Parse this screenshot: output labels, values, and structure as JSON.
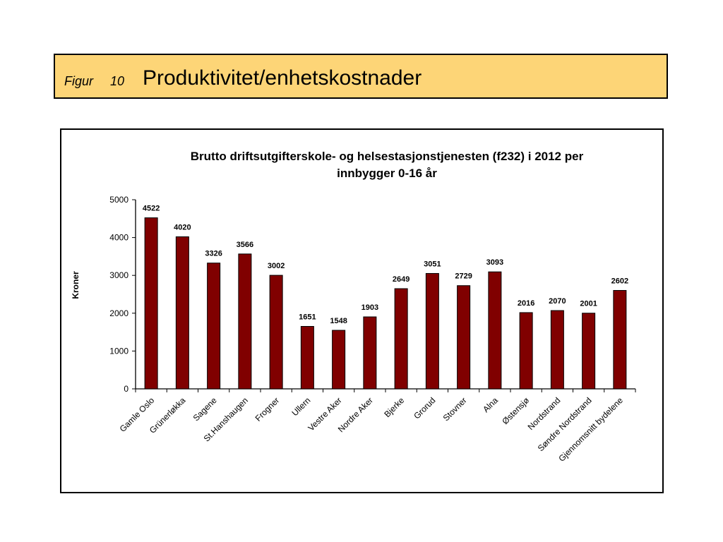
{
  "header": {
    "figur_label": "Figur",
    "figur_number": "10",
    "title": "Produktivitet/enhetskostnader"
  },
  "colors": {
    "header_background": "#fdd577",
    "bar_fill": "#800000",
    "frame_border": "#000000"
  },
  "chart_data": {
    "type": "bar",
    "title_lines": [
      "Brutto driftsutgifterskole- og helsestasjonstjenesten (f232) i 2012 per",
      "innbygger 0-16 år"
    ],
    "xlabel": "",
    "ylabel": "Kroner",
    "ylim": [
      0,
      5000
    ],
    "yticks": [
      0,
      1000,
      2000,
      3000,
      4000,
      5000
    ],
    "grid": false,
    "legend": "none",
    "categories": [
      "Gamle Oslo",
      "Grünerløkka",
      "Sagene",
      "St.Hanshaugen",
      "Frogner",
      "Ullern",
      "Vestre Aker",
      "Nordre Aker",
      "Bjerke",
      "Grorud",
      "Stovner",
      "Alna",
      "Østensjø",
      "Nordstrand",
      "Søndre Nordstrand",
      "Gjennomsnitt bydelene"
    ],
    "values": [
      4522,
      4020,
      3326,
      3566,
      3002,
      1651,
      1548,
      1903,
      2649,
      3051,
      2729,
      3093,
      2016,
      2070,
      2001,
      2602
    ],
    "data_labels": true
  }
}
